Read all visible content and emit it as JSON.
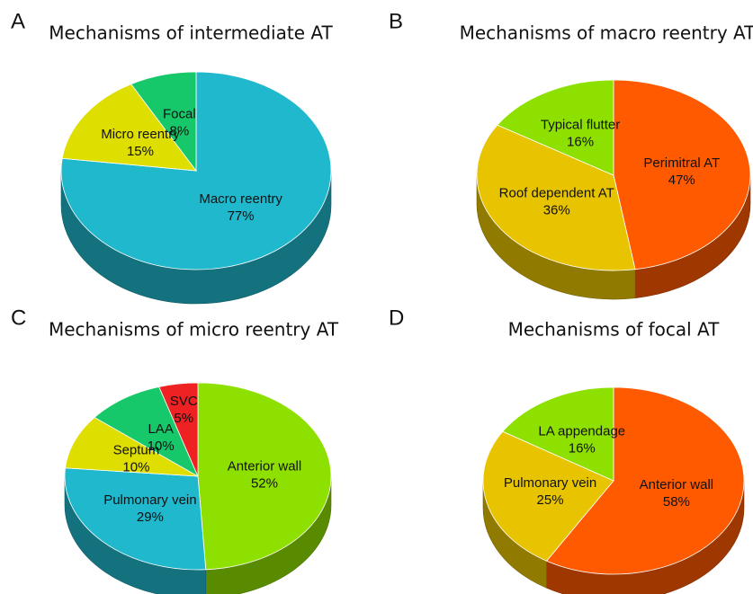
{
  "chart_data": [
    {
      "type": "pie",
      "panel": "A",
      "title": "Mechanisms of intermediate AT",
      "categories": [
        "Macro reentry",
        "Micro reentry",
        "Focal"
      ],
      "values": [
        77,
        15,
        8
      ],
      "value_labels": [
        "77%",
        "15%",
        "8%"
      ],
      "colors": [
        "#1fb8cc",
        "#dede00",
        "#17c86a"
      ]
    },
    {
      "type": "pie",
      "panel": "B",
      "title": "Mechanisms of macro reentry AT",
      "categories": [
        "Perimitral AT",
        "Roof dependent AT",
        "Typical flutter"
      ],
      "values": [
        47,
        36,
        16
      ],
      "value_labels": [
        "47%",
        "36%",
        "16%"
      ],
      "colors": [
        "#ff5a00",
        "#e8c400",
        "#8ee000"
      ]
    },
    {
      "type": "pie",
      "panel": "C",
      "title": "Mechanisms of micro reentry AT",
      "categories": [
        "Anterior wall",
        "Pulmonary vein",
        "Septum",
        "LAA",
        "SVC"
      ],
      "values": [
        52,
        29,
        10,
        10,
        5
      ],
      "value_labels": [
        "52%",
        "29%",
        "10%",
        "10%",
        "5%"
      ],
      "colors": [
        "#8ee000",
        "#1fb8cc",
        "#dede00",
        "#17c86a",
        "#ee2222"
      ]
    },
    {
      "type": "pie",
      "panel": "D",
      "title": "Mechanisms of focal AT",
      "categories": [
        "Anterior wall",
        "Pulmonary vein",
        "LA appendage"
      ],
      "values": [
        58,
        25,
        16
      ],
      "value_labels": [
        "58%",
        "25%",
        "16%"
      ],
      "colors": [
        "#ff5a00",
        "#e8c400",
        "#8ee000"
      ]
    }
  ]
}
